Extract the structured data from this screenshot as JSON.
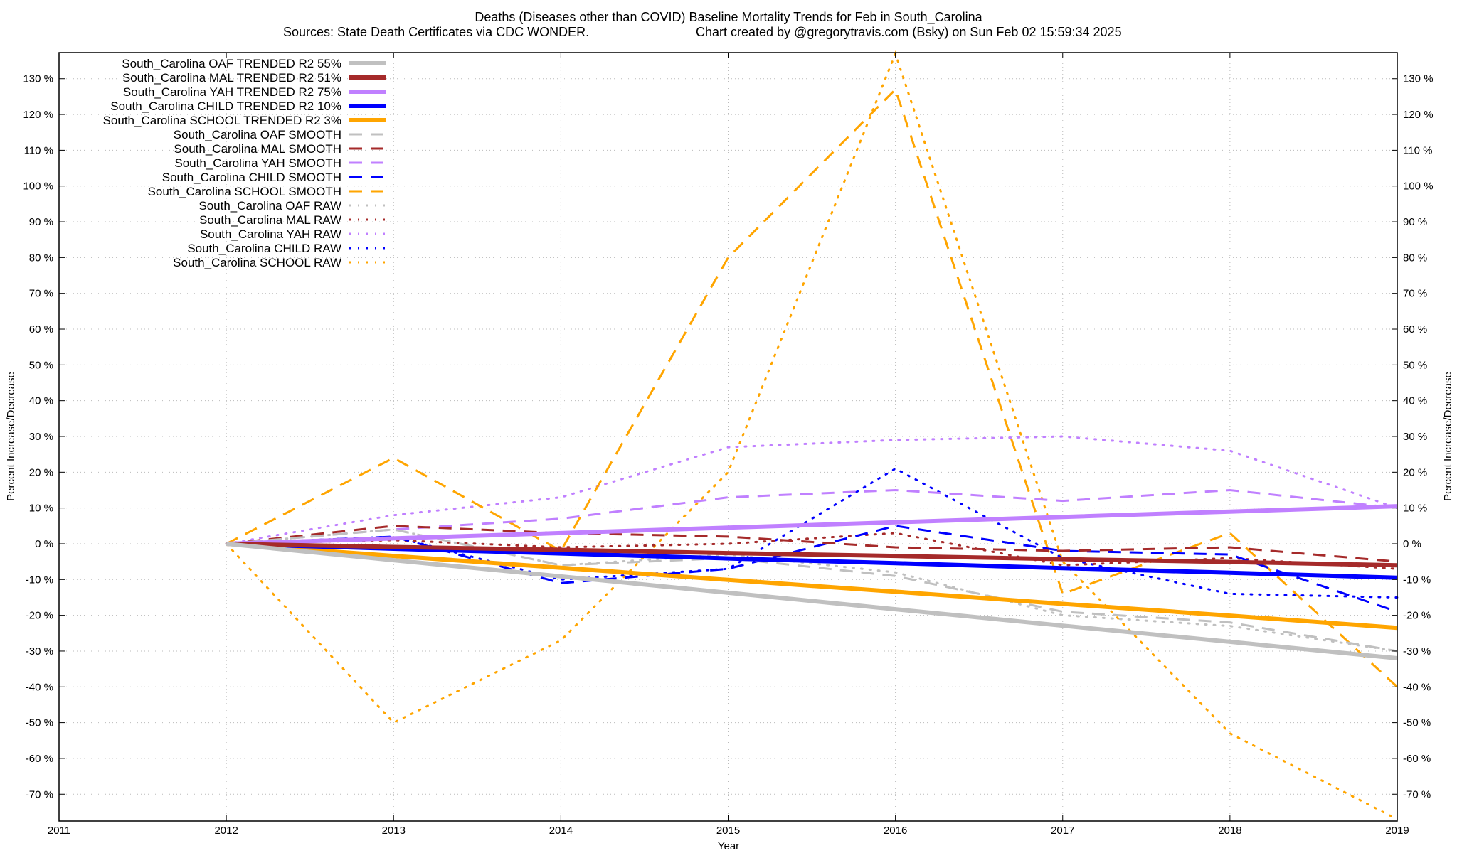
{
  "title_line1": "Deaths (Diseases other than COVID)  Baseline Mortality Trends for Feb in South_Carolina",
  "title_line2_left": "Sources: State Death Certificates via CDC WONDER.",
  "title_line2_right": "Chart created by @gregorytravis.com (Bsky) on Sun Feb 02 15:59:34 2025",
  "chart_data": {
    "type": "line",
    "xlabel": "Year",
    "ylabel": "Percent Increase/Decrease",
    "y2label": "Percent Increase/Decrease",
    "xlim": [
      2011,
      2019
    ],
    "ylim": [
      -77.5,
      137.3
    ],
    "x_ticks": [
      "2011",
      "2012",
      "2013",
      "2014",
      "2015",
      "2016",
      "2017",
      "2018",
      "2019"
    ],
    "y_ticks": [
      "-70 %",
      "-60 %",
      "-50 %",
      "-40 %",
      "-30 %",
      "-20 %",
      "-10 %",
      "0 %",
      "10 %",
      "20 %",
      "30 %",
      "40 %",
      "50 %",
      "60 %",
      "70 %",
      "80 %",
      "90 %",
      "100 %",
      "110 %",
      "120 %",
      "130 %"
    ],
    "grid": true,
    "legend_placement": "top-left",
    "x": [
      2012,
      2013,
      2014,
      2015,
      2016,
      2017,
      2018,
      2019
    ],
    "series": [
      {
        "name": "South_Carolina OAF TRENDED R2  55%",
        "style": "solid-thick",
        "color": "#c0c0c0",
        "values": [
          0,
          -4.6,
          -9.1,
          -13.7,
          -18.3,
          -22.9,
          -27.4,
          -32
        ]
      },
      {
        "name": "South_Carolina MAL TRENDED R2  51%",
        "style": "solid-thick",
        "color": "#a52a2a",
        "values": [
          0,
          -0.9,
          -1.7,
          -2.6,
          -3.4,
          -4.3,
          -5.1,
          -6
        ]
      },
      {
        "name": "South_Carolina YAH TRENDED R2  75%",
        "style": "solid-thick",
        "color": "#c080ff",
        "values": [
          0,
          1.5,
          3,
          4.5,
          6,
          7.5,
          9,
          10.5
        ]
      },
      {
        "name": "South_Carolina CHILD TRENDED R2  10%",
        "style": "solid-thick",
        "color": "#0000ff",
        "values": [
          0,
          -1.4,
          -2.7,
          -4.1,
          -5.4,
          -6.8,
          -8.1,
          -9.5
        ]
      },
      {
        "name": "South_Carolina SCHOOL TRENDED R2   3%",
        "style": "solid-thick",
        "color": "#ffa500",
        "values": [
          0,
          -3.4,
          -6.7,
          -10.1,
          -13.4,
          -16.8,
          -20.1,
          -23.5
        ]
      },
      {
        "name": "South_Carolina OAF SMOOTH",
        "style": "dashed",
        "color": "#c0c0c0",
        "values": [
          0,
          4,
          -6,
          -4,
          -9,
          -19,
          -22,
          -30
        ]
      },
      {
        "name": "South_Carolina MAL SMOOTH",
        "style": "dashed",
        "color": "#a52a2a",
        "values": [
          0,
          5,
          3,
          2,
          -1,
          -2,
          -1,
          -5
        ]
      },
      {
        "name": "South_Carolina YAH SMOOTH",
        "style": "dashed",
        "color": "#c080ff",
        "values": [
          0,
          4,
          7,
          13,
          15,
          12,
          15,
          10
        ]
      },
      {
        "name": "South_Carolina CHILD SMOOTH",
        "style": "dashed",
        "color": "#0000ff",
        "values": [
          0,
          2,
          -11,
          -7,
          5,
          -2,
          -3,
          -19
        ]
      },
      {
        "name": "South_Carolina SCHOOL SMOOTH",
        "style": "dashed",
        "color": "#ffa500",
        "values": [
          0,
          24,
          -2,
          80,
          127,
          -14,
          3,
          -40
        ]
      },
      {
        "name": "South_Carolina OAF RAW",
        "style": "dotted",
        "color": "#c0c0c0",
        "values": [
          0,
          4,
          -6,
          -3,
          -8,
          -20,
          -23,
          -30
        ]
      },
      {
        "name": "South_Carolina MAL RAW",
        "style": "dotted",
        "color": "#a52a2a",
        "values": [
          0,
          1,
          -1,
          0,
          3,
          -6,
          -4,
          -7
        ]
      },
      {
        "name": "South_Carolina YAH RAW",
        "style": "dotted",
        "color": "#c080ff",
        "values": [
          0,
          8,
          13,
          27,
          29,
          30,
          26,
          10
        ]
      },
      {
        "name": "South_Carolina CHILD RAW",
        "style": "dotted",
        "color": "#0000ff",
        "values": [
          0,
          2,
          -10,
          -7,
          21,
          -4,
          -14,
          -15
        ]
      },
      {
        "name": "South_Carolina SCHOOL RAW",
        "style": "dotted",
        "color": "#ffa500",
        "values": [
          0,
          -50,
          -27,
          20,
          137,
          -5,
          -53,
          -77
        ]
      }
    ]
  }
}
